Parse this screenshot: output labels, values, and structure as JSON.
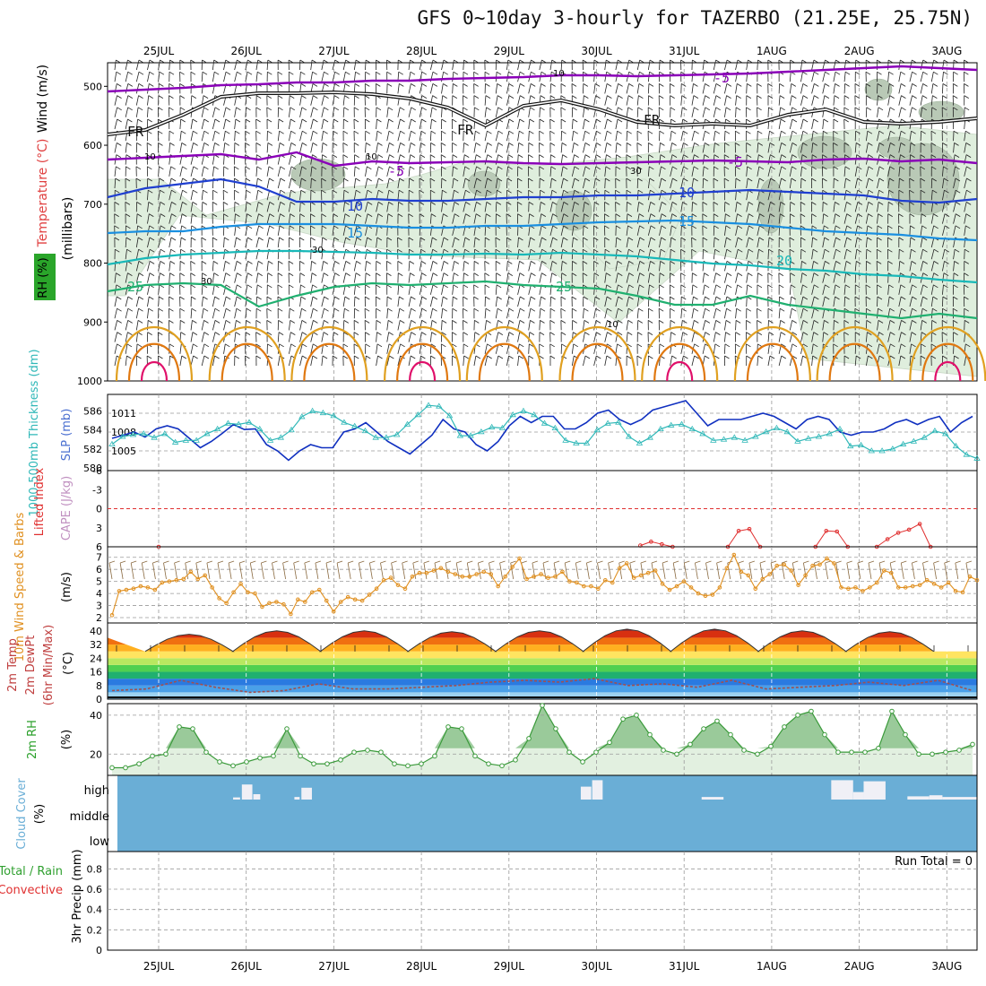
{
  "title": "GFS 0~10day 3-hourly for TAZERBO (21.25E, 25.75N)",
  "dates": [
    "25JUL",
    "26JUL",
    "27JUL",
    "28JUL",
    "29JUL",
    "30JUL",
    "31JUL",
    "1AUG",
    "2AUG",
    "3AUG"
  ],
  "colors": {
    "frame": "#000000",
    "grid": "#9a9a9a",
    "rh_fill": "#dfeedd",
    "rh_dark": "#b9c9b6",
    "wind_barb": "#222222",
    "fr_line": "#111111",
    "t_minus5": "#8a00b8",
    "t_10": "#1f3fd0",
    "t_15": "#1a8fe0",
    "t_20": "#18b8b8",
    "t_25": "#20b070",
    "t_warm1": "#e0a020",
    "t_warm2": "#e07810",
    "t_hot": "#e0106a",
    "slp": "#1030c0",
    "thickness": "#30b8b8",
    "lifted": "#e03030",
    "wind10": "#e09020",
    "barb10": "#8a6a40",
    "rh2m": "#3a9a3a",
    "rh2m_fill": "#e2f0e0",
    "rh2m_dark": "#88c088",
    "dewpt": "#a05050",
    "cloud": "#6aaed6",
    "cloud_bar": "#f0f0f6",
    "precip_total": "#30a030",
    "precip_conv": "#e03030"
  },
  "upper_air": {
    "left_labels": [
      "Wind (m/s)",
      "Temperature (°C)",
      "RH (%)",
      "(millibars)"
    ],
    "left_label_colors": [
      "#000000",
      "#e04040",
      "#000000",
      "#000000"
    ],
    "pressure_ticks": [
      500,
      600,
      700,
      800,
      900,
      1000
    ],
    "contour_labels": [
      {
        "text": "-5",
        "color": "#8a00b8"
      },
      {
        "text": "-5",
        "color": "#8a00b8"
      },
      {
        "text": "-5",
        "color": "#8a00b8"
      },
      {
        "text": "FR",
        "color": "#111111"
      },
      {
        "text": "FR",
        "color": "#111111"
      },
      {
        "text": "FR",
        "color": "#111111"
      },
      {
        "text": "10",
        "color": "#1f3fd0"
      },
      {
        "text": "10",
        "color": "#1f3fd0"
      },
      {
        "text": "15",
        "color": "#1a8fe0"
      },
      {
        "text": "15",
        "color": "#1a8fe0"
      },
      {
        "text": "20",
        "color": "#18b8b8"
      },
      {
        "text": "25",
        "color": "#20b070"
      },
      {
        "text": "25",
        "color": "#20b070"
      }
    ],
    "rh_labels": [
      "10",
      "10",
      "10",
      "30",
      "30",
      "10",
      "30"
    ]
  },
  "slp_panel": {
    "label_thickness": "1000-500mb Thickness (dm)",
    "label_slp": "SLP (mb)",
    "thickness_ticks": [
      580,
      582,
      584,
      586
    ],
    "slp_ticks": [
      1005,
      1008,
      1011
    ]
  },
  "cape_panel": {
    "label_lifted": "Lifted Index",
    "label_cape": "CAPE (J/kg)",
    "ticks": [
      6,
      3,
      0,
      -3,
      -6
    ]
  },
  "wind10_panel": {
    "label": "10m Wind Speed & Barbs",
    "unit": "(m/s)",
    "ticks": [
      2,
      3,
      4,
      5,
      6,
      7
    ]
  },
  "temp_panel": {
    "label_lines": [
      "2m Temp",
      "2m DewPt",
      "(6hr Min/Max)"
    ],
    "unit": "(°C)",
    "ticks": [
      0,
      8,
      16,
      24,
      32,
      40
    ]
  },
  "rh2m_panel": {
    "label": "2m RH",
    "unit": "(%)",
    "ticks": [
      20,
      40
    ]
  },
  "cloud_panel": {
    "label": "Cloud Cover",
    "unit": "(%)",
    "levels": [
      "high",
      "middle",
      "low"
    ]
  },
  "precip_panel": {
    "label_total": "Total / Rain",
    "label_conv": "Convective",
    "label_y": "3hr Precip (mm)",
    "ticks": [
      "0",
      "0.2",
      "0.4",
      "0.6",
      "0.8"
    ],
    "run_total": "Run Total = 0"
  },
  "chart_data": [
    {
      "type": "line",
      "title": "3hr time axis (25JUL - 3AUG)",
      "x_unit": "hours from 00Z 24JUL",
      "x_start_hour": 12,
      "x_step_hours": 3,
      "series": [
        {
          "name": "SLP (mb)",
          "ylim": [
            1003,
            1013
          ],
          "values": [
            1007,
            1007.5,
            1008,
            1007.2,
            1008.5,
            1009,
            1008.5,
            1007,
            1005.5,
            1006.5,
            1007.8,
            1009.2,
            1008.4,
            1008.5,
            1006,
            1005,
            1003.5,
            1005,
            1006,
            1005.5,
            1005.5,
            1008,
            1008.5,
            1009.5,
            1008,
            1006.5,
            1005.5,
            1004.5,
            1006,
            1007.5,
            1010,
            1008.5,
            1008,
            1006,
            1005,
            1006.5,
            1009,
            1010.5,
            1009.5,
            1010.5,
            1010.5,
            1008.5,
            1008.5,
            1009.5,
            1011,
            1011.5,
            1010,
            1009.2,
            1010,
            1011.5,
            1012,
            1012.5,
            1013,
            1011,
            1009,
            1010,
            1010,
            1010,
            1010.5,
            1011,
            1010.5,
            1009.5,
            1008.5,
            1010,
            1010.5,
            1010,
            1008,
            1007.5,
            1008,
            1008,
            1008.5,
            1009.5,
            1010,
            1009.2,
            1010,
            1010.5,
            1008,
            1009.5,
            1010.5
          ]
        },
        {
          "name": "1000-500mb Thickness (dm)",
          "ylim": [
            580,
            587
          ],
          "values": [
            582.5,
            583.3,
            583.5,
            583.6,
            583.2,
            583.6,
            582.7,
            582.9,
            582.9,
            583.6,
            584.1,
            584.7,
            584.6,
            584.8,
            584.1,
            582.9,
            583.2,
            584,
            585.4,
            586,
            585.8,
            585.5,
            584.8,
            584.4,
            583.9,
            583.2,
            583.2,
            583.5,
            584.6,
            585.6,
            586.6,
            586.5,
            585.5,
            583.4,
            583.4,
            583.8,
            584.3,
            584.2,
            585.6,
            586,
            585.6,
            584.7,
            584.2,
            582.9,
            582.6,
            582.6,
            584,
            584.7,
            584.8,
            583.3,
            582.6,
            583.2,
            584.1,
            584.5,
            584.6,
            584.1,
            583.6,
            582.9,
            583,
            583.2,
            582.9,
            583.3,
            583.8,
            584.2,
            583.8,
            582.8,
            583.1,
            583.3,
            583.6,
            584.1,
            582.3,
            582.4,
            581.8,
            581.8,
            582,
            582.5,
            582.8,
            583.2,
            583.9,
            583.6,
            582.3,
            581.4,
            581
          ]
        }
      ]
    },
    {
      "type": "line",
      "title": "Lifted Index",
      "ylim": [
        -6,
        6
      ],
      "y_inverted": true,
      "segments": [
        {
          "day_index": 0,
          "values": [
            6
          ]
        },
        {
          "day_index": 5.5,
          "values": [
            5.8,
            5.2,
            5.6,
            6
          ]
        },
        {
          "day_index": 6.5,
          "values": [
            6,
            3.5,
            3.2,
            6
          ]
        },
        {
          "day_index": 7.5,
          "values": [
            6,
            3.5,
            3.6,
            6
          ]
        },
        {
          "day_index": 8.2,
          "values": [
            6,
            4.8,
            3.8,
            3.3,
            2.4,
            6
          ]
        }
      ]
    },
    {
      "type": "line",
      "title": "10m Wind Speed",
      "unit": "m/s",
      "ylim": [
        2,
        7.5
      ],
      "values": [
        2.2,
        4.2,
        4.3,
        4.4,
        4.6,
        4.5,
        4.3,
        4.9,
        5,
        5.1,
        5.2,
        5.8,
        5.2,
        5.5,
        4.5,
        3.6,
        3.2,
        4.1,
        4.8,
        4.1,
        4,
        2.9,
        3.2,
        3.3,
        3.1,
        2.3,
        3.5,
        3.3,
        4.1,
        4.3,
        3.4,
        2.5,
        3.3,
        3.7,
        3.5,
        3.4,
        3.9,
        4.4,
        5.1,
        5.3,
        4.7,
        4.4,
        5.4,
        5.7,
        5.7,
        5.9,
        6.1,
        5.8,
        5.6,
        5.4,
        5.4,
        5.6,
        5.8,
        5.6,
        4.6,
        5.4,
        6.2,
        6.9,
        5.2,
        5.4,
        5.6,
        5.3,
        5.4,
        5.8,
        5,
        4.9,
        4.6,
        4.6,
        4.4,
        5.1,
        4.9,
        6.1,
        6.5,
        5.3,
        5.5,
        5.7,
        5.9,
        4.8,
        4.3,
        4.6,
        5,
        4.5,
        4,
        3.8,
        3.9,
        4.5,
        6.1,
        7.2,
        5.8,
        5.5,
        4.4,
        5.2,
        5.6,
        6.3,
        6.4,
        5.9,
        4.7,
        5.5,
        6.3,
        6.4,
        6.9,
        6.5,
        4.5,
        4.4,
        4.5,
        4.2,
        4.5,
        4.9,
        5.9,
        5.7,
        4.5,
        4.5,
        4.6,
        4.7,
        5.1,
        4.8,
        4.5,
        4.9,
        4.2,
        4.1,
        5.4,
        5.1
      ]
    },
    {
      "type": "area",
      "title": "2m Temp / DewPt",
      "unit": "°C",
      "ylim": [
        0,
        42
      ],
      "temp_max": [
        38,
        40,
        40,
        39.5,
        40,
        41,
        41,
        40,
        39.5
      ],
      "temp_min": [
        28,
        28,
        28,
        28,
        28,
        28,
        28,
        28,
        28
      ],
      "dewpt": [
        5,
        6,
        11,
        7,
        4,
        5,
        9,
        6,
        6,
        7,
        8,
        10,
        11,
        10,
        12,
        8,
        9,
        7,
        11,
        6,
        7,
        8,
        10,
        8,
        11,
        5
      ]
    },
    {
      "type": "area",
      "title": "2m RH",
      "unit": "%",
      "ylim": [
        10,
        45
      ],
      "values": [
        13,
        13,
        15,
        19,
        20,
        34,
        33,
        21,
        16,
        14,
        16,
        18,
        19,
        33,
        19,
        15,
        15,
        17,
        21,
        22,
        21,
        15,
        14,
        15,
        19,
        34,
        33,
        19,
        15,
        14,
        17,
        28,
        45,
        33,
        21,
        16,
        21,
        26,
        38,
        40,
        30,
        22,
        20,
        25,
        33,
        37,
        30,
        22,
        20,
        24,
        34,
        40,
        42,
        30,
        21,
        21,
        21,
        23,
        42,
        30,
        20,
        20,
        21,
        22,
        25
      ]
    },
    {
      "type": "bar",
      "title": "Cloud Cover (high)",
      "unit": "%",
      "bars": [
        {
          "day": 0.85,
          "width": 0.08,
          "high": 10
        },
        {
          "day": 0.95,
          "width": 0.12,
          "high": 70
        },
        {
          "day": 1.08,
          "width": 0.08,
          "high": 25
        },
        {
          "day": 1.55,
          "width": 0.06,
          "high": 12
        },
        {
          "day": 1.63,
          "width": 0.12,
          "high": 55
        },
        {
          "day": 4.82,
          "width": 0.12,
          "high": 60
        },
        {
          "day": 4.95,
          "width": 0.12,
          "high": 90
        },
        {
          "day": 6.2,
          "width": 0.25,
          "high": 12
        },
        {
          "day": 7.68,
          "width": 0.25,
          "high": 90
        },
        {
          "day": 7.93,
          "width": 0.12,
          "high": 35
        },
        {
          "day": 8.05,
          "width": 0.25,
          "high": 85
        },
        {
          "day": 8.55,
          "width": 0.25,
          "high": 15
        },
        {
          "day": 8.8,
          "width": 0.15,
          "high": 20
        },
        {
          "day": 8.95,
          "width": 0.4,
          "high": 12
        }
      ]
    },
    {
      "type": "bar",
      "title": "3hr Precip (mm)",
      "ylim": [
        0,
        0.9
      ],
      "values": []
    }
  ]
}
